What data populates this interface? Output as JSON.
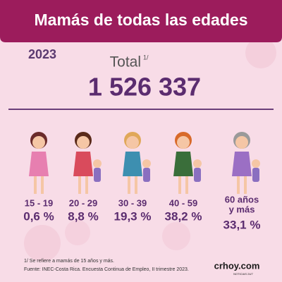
{
  "header": {
    "title": "Mamás de todas las edades"
  },
  "year": "2023",
  "total": {
    "label": "Total",
    "note": "1/",
    "value": "1 526 337"
  },
  "groups": [
    {
      "age": [
        "15 - 19"
      ],
      "share": "0,6 %"
    },
    {
      "age": [
        "20 - 29"
      ],
      "share": "8,8 %"
    },
    {
      "age": [
        "30 - 39"
      ],
      "share": "19,3 %"
    },
    {
      "age": [
        "40 - 59"
      ],
      "share": "38,2 %"
    },
    {
      "age": [
        "60 años",
        "y más"
      ],
      "share": "33,1 %"
    }
  ],
  "footer": {
    "note": "1/ Se refiere a mamás de 15 años y más.",
    "source": "Fuente: INEC-Costa Rica. Encuesta Continua de Empleo, II trimestre 2023.",
    "brand": "crhoy.com",
    "tagline": "NOTICIAS 24/7"
  }
}
